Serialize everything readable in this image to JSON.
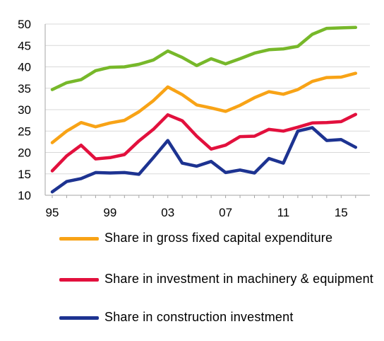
{
  "chart_data": {
    "type": "line",
    "x": [
      1995,
      1996,
      1997,
      1998,
      1999,
      2000,
      2001,
      2002,
      2003,
      2004,
      2005,
      2006,
      2007,
      2008,
      2009,
      2010,
      2011,
      2012,
      2013,
      2014,
      2015,
      2016
    ],
    "xticks": [
      {
        "value": 1995,
        "label": "95"
      },
      {
        "value": 1999,
        "label": "99"
      },
      {
        "value": 2003,
        "label": "03"
      },
      {
        "value": 2007,
        "label": "07"
      },
      {
        "value": 2011,
        "label": "11"
      },
      {
        "value": 2015,
        "label": "15"
      }
    ],
    "yticks": [
      10,
      15,
      20,
      25,
      30,
      35,
      40,
      45,
      50
    ],
    "ylim": [
      10,
      50
    ],
    "xlim": [
      1995,
      2016.5
    ],
    "grid": "horizontal",
    "legend_position": "bottom",
    "series": [
      {
        "name": "",
        "color": "#77b82a",
        "values": [
          34.7,
          36.3,
          37.0,
          39.1,
          39.9,
          40.0,
          40.6,
          41.6,
          43.7,
          42.2,
          40.3,
          41.9,
          40.7,
          41.9,
          43.2,
          44.0,
          44.2,
          44.8,
          47.6,
          49.0,
          49.1,
          49.2
        ]
      },
      {
        "name": "Share in gross fixed capital expenditure",
        "color": "#f8a316",
        "values": [
          22.3,
          25.0,
          27.0,
          26.0,
          26.9,
          27.5,
          29.5,
          32.1,
          35.3,
          33.5,
          31.1,
          30.4,
          29.6,
          31.0,
          32.8,
          34.2,
          33.6,
          34.7,
          36.6,
          37.5,
          37.6,
          38.5
        ]
      },
      {
        "name": "Share in investment in machinery & equipment",
        "color": "#e2103d",
        "values": [
          15.7,
          19.2,
          21.7,
          18.5,
          18.8,
          19.5,
          22.7,
          25.4,
          28.8,
          27.4,
          23.8,
          20.8,
          21.7,
          23.7,
          23.8,
          25.4,
          25.0,
          25.9,
          26.9,
          27.0,
          27.2,
          28.9
        ]
      },
      {
        "name": "Share in construction investment",
        "color": "#1d3391",
        "values": [
          10.8,
          13.2,
          13.9,
          15.3,
          15.2,
          15.3,
          14.9,
          18.8,
          22.8,
          17.5,
          16.8,
          17.9,
          15.3,
          15.9,
          15.2,
          18.6,
          17.5,
          25.0,
          25.8,
          22.8,
          23.0,
          21.2
        ]
      }
    ]
  },
  "legend": [
    {
      "label": "Share in gross fixed capital expenditure",
      "color": "#f8a316"
    },
    {
      "label": "Share in investment in machinery & equipment",
      "color": "#e2103d"
    },
    {
      "label": "Share in construction investment",
      "color": "#1d3391"
    }
  ]
}
